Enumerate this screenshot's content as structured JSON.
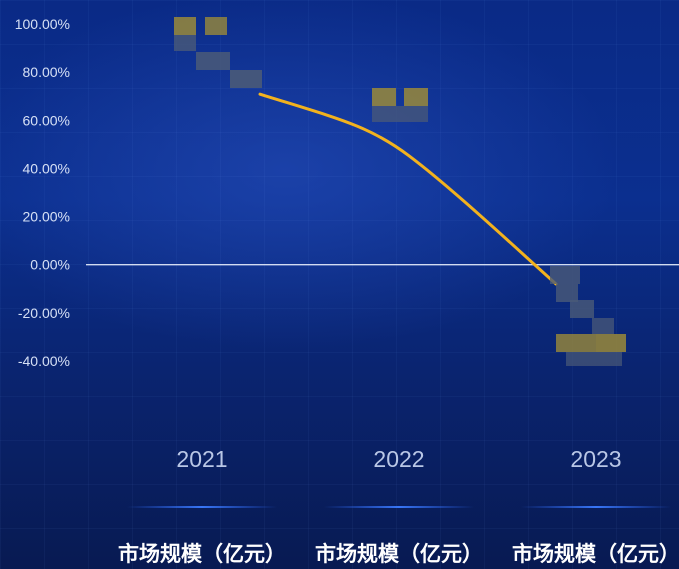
{
  "chart_data": {
    "type": "line",
    "title": "",
    "xlabel": "",
    "ylabel": "",
    "ylim": [
      -40,
      100
    ],
    "yticks": [
      100,
      80,
      60,
      40,
      20,
      0,
      -20,
      -40
    ],
    "ytick_labels": [
      "100.00%",
      "80.00%",
      "60.00%",
      "40.00%",
      "20.00%",
      "0.00%",
      "-20.00%",
      "-40.00%"
    ],
    "categories": [
      "2021",
      "2022",
      "2023"
    ],
    "series": [
      {
        "values": [
          75,
          44,
          -8
        ]
      }
    ],
    "column_labels": [
      "市场规模（亿元）",
      "市场规模（亿元）",
      "市场规模（亿元）"
    ],
    "zero_line": true,
    "grid": false,
    "legend": "none",
    "redacted_labels": true,
    "colors": {
      "line": "#f2b21e",
      "zero_line": "#e8eefc",
      "redaction_gold": "#9a8a3a",
      "redaction_gray": "#4a5a78"
    }
  }
}
